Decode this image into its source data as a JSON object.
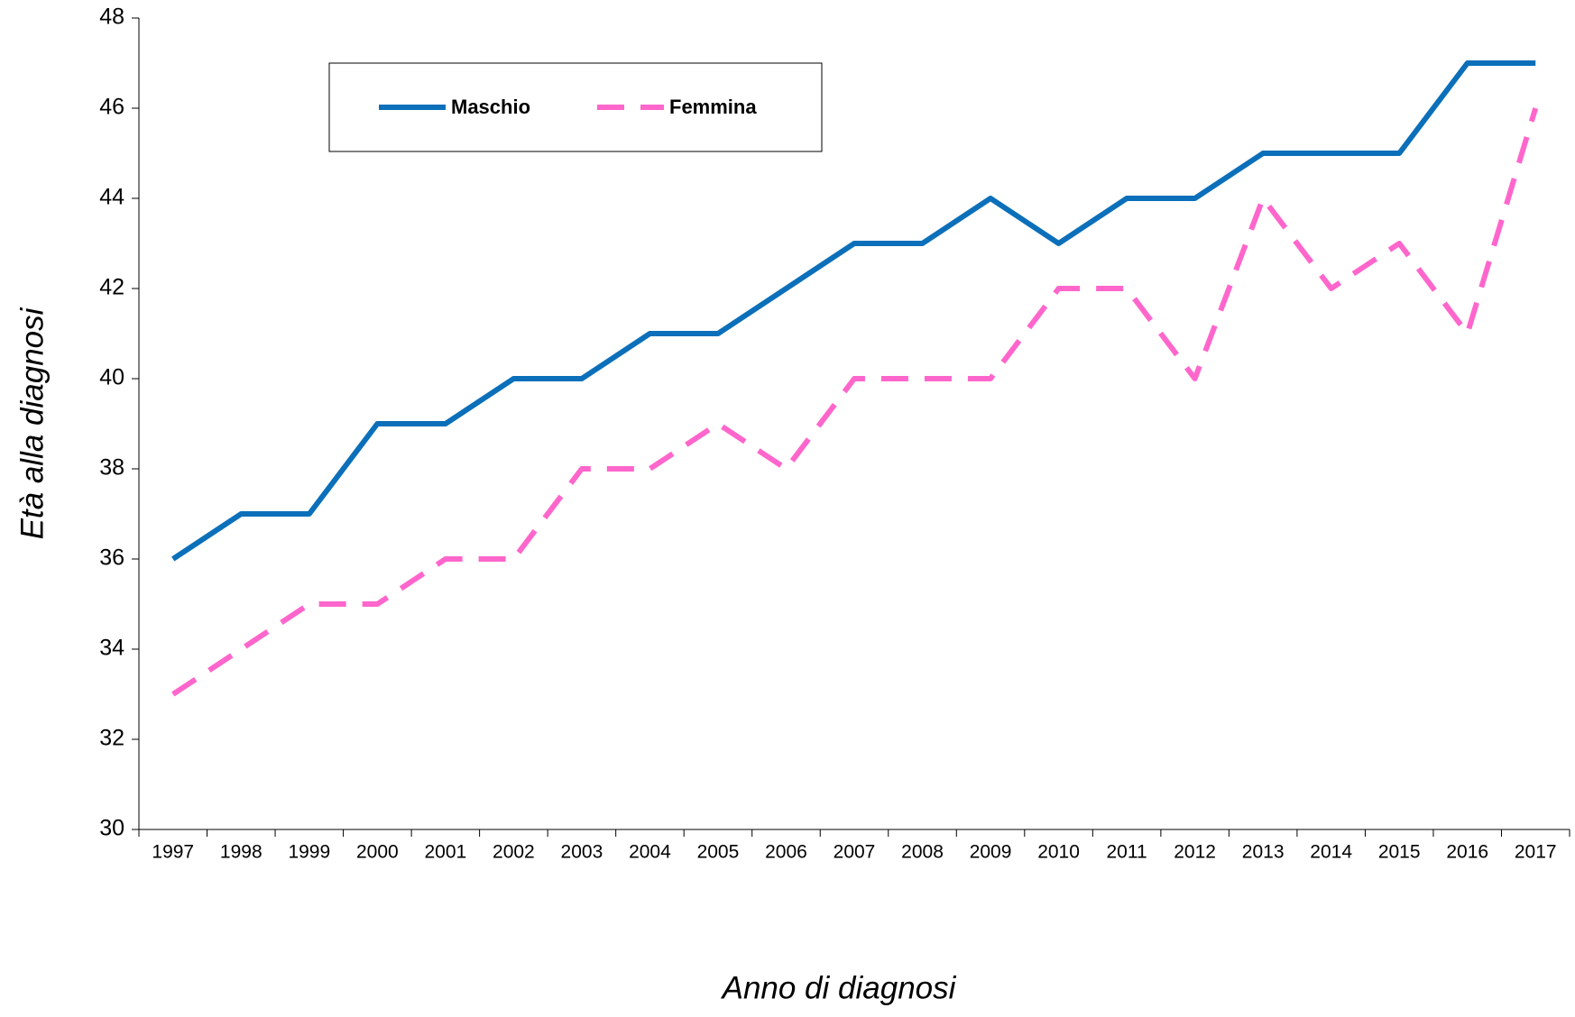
{
  "chart_data": {
    "type": "line",
    "x_label": "Anno di diagnosi",
    "y_label": "Età alla diagnosi",
    "categories": [
      "1997",
      "1998",
      "1999",
      "2000",
      "2001",
      "2002",
      "2003",
      "2004",
      "2005",
      "2006",
      "2007",
      "2008",
      "2009",
      "2010",
      "2011",
      "2012",
      "2013",
      "2014",
      "2015",
      "2016",
      "2017"
    ],
    "series": [
      {
        "name": "Maschio",
        "color": "#0b6fba",
        "dash": false,
        "values": [
          36,
          37,
          37,
          39,
          39,
          40,
          40,
          41,
          41,
          42,
          43,
          43,
          44,
          43,
          44,
          44,
          45,
          45,
          45,
          47,
          47
        ]
      },
      {
        "name": "Femmina",
        "color": "#ff66cc",
        "dash": true,
        "values": [
          33,
          34,
          35,
          35,
          36,
          36,
          38,
          38,
          39,
          38,
          40,
          40,
          40,
          42,
          42,
          40,
          44,
          42,
          43,
          41,
          46
        ]
      }
    ],
    "ylim": [
      30,
      48
    ],
    "yticks": [
      30,
      32,
      34,
      36,
      38,
      40,
      42,
      44,
      46,
      48
    ],
    "grid": false
  }
}
